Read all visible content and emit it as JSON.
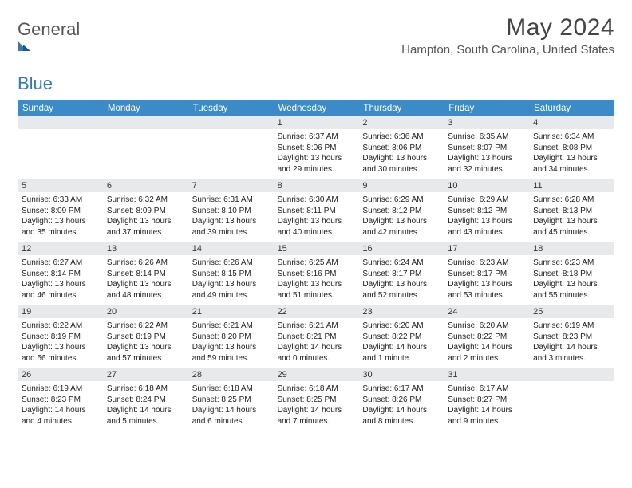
{
  "brand": {
    "name_a": "General",
    "name_b": "Blue"
  },
  "title": "May 2024",
  "location": "Hampton, South Carolina, United States",
  "colors": {
    "header_bg": "#3b8bc8",
    "header_text": "#ffffff",
    "daynum_bg": "#e8e9ea",
    "row_border": "#3a6a95",
    "title_color": "#444",
    "logo_blue": "#2f7bbf"
  },
  "weekdays": [
    "Sunday",
    "Monday",
    "Tuesday",
    "Wednesday",
    "Thursday",
    "Friday",
    "Saturday"
  ],
  "weeks": [
    [
      {
        "blank": true
      },
      {
        "blank": true
      },
      {
        "blank": true
      },
      {
        "day": "1",
        "sunrise": "Sunrise: 6:37 AM",
        "sunset": "Sunset: 8:06 PM",
        "daylight": "Daylight: 13 hours and 29 minutes."
      },
      {
        "day": "2",
        "sunrise": "Sunrise: 6:36 AM",
        "sunset": "Sunset: 8:06 PM",
        "daylight": "Daylight: 13 hours and 30 minutes."
      },
      {
        "day": "3",
        "sunrise": "Sunrise: 6:35 AM",
        "sunset": "Sunset: 8:07 PM",
        "daylight": "Daylight: 13 hours and 32 minutes."
      },
      {
        "day": "4",
        "sunrise": "Sunrise: 6:34 AM",
        "sunset": "Sunset: 8:08 PM",
        "daylight": "Daylight: 13 hours and 34 minutes."
      }
    ],
    [
      {
        "day": "5",
        "sunrise": "Sunrise: 6:33 AM",
        "sunset": "Sunset: 8:09 PM",
        "daylight": "Daylight: 13 hours and 35 minutes."
      },
      {
        "day": "6",
        "sunrise": "Sunrise: 6:32 AM",
        "sunset": "Sunset: 8:09 PM",
        "daylight": "Daylight: 13 hours and 37 minutes."
      },
      {
        "day": "7",
        "sunrise": "Sunrise: 6:31 AM",
        "sunset": "Sunset: 8:10 PM",
        "daylight": "Daylight: 13 hours and 39 minutes."
      },
      {
        "day": "8",
        "sunrise": "Sunrise: 6:30 AM",
        "sunset": "Sunset: 8:11 PM",
        "daylight": "Daylight: 13 hours and 40 minutes."
      },
      {
        "day": "9",
        "sunrise": "Sunrise: 6:29 AM",
        "sunset": "Sunset: 8:12 PM",
        "daylight": "Daylight: 13 hours and 42 minutes."
      },
      {
        "day": "10",
        "sunrise": "Sunrise: 6:29 AM",
        "sunset": "Sunset: 8:12 PM",
        "daylight": "Daylight: 13 hours and 43 minutes."
      },
      {
        "day": "11",
        "sunrise": "Sunrise: 6:28 AM",
        "sunset": "Sunset: 8:13 PM",
        "daylight": "Daylight: 13 hours and 45 minutes."
      }
    ],
    [
      {
        "day": "12",
        "sunrise": "Sunrise: 6:27 AM",
        "sunset": "Sunset: 8:14 PM",
        "daylight": "Daylight: 13 hours and 46 minutes."
      },
      {
        "day": "13",
        "sunrise": "Sunrise: 6:26 AM",
        "sunset": "Sunset: 8:14 PM",
        "daylight": "Daylight: 13 hours and 48 minutes."
      },
      {
        "day": "14",
        "sunrise": "Sunrise: 6:26 AM",
        "sunset": "Sunset: 8:15 PM",
        "daylight": "Daylight: 13 hours and 49 minutes."
      },
      {
        "day": "15",
        "sunrise": "Sunrise: 6:25 AM",
        "sunset": "Sunset: 8:16 PM",
        "daylight": "Daylight: 13 hours and 51 minutes."
      },
      {
        "day": "16",
        "sunrise": "Sunrise: 6:24 AM",
        "sunset": "Sunset: 8:17 PM",
        "daylight": "Daylight: 13 hours and 52 minutes."
      },
      {
        "day": "17",
        "sunrise": "Sunrise: 6:23 AM",
        "sunset": "Sunset: 8:17 PM",
        "daylight": "Daylight: 13 hours and 53 minutes."
      },
      {
        "day": "18",
        "sunrise": "Sunrise: 6:23 AM",
        "sunset": "Sunset: 8:18 PM",
        "daylight": "Daylight: 13 hours and 55 minutes."
      }
    ],
    [
      {
        "day": "19",
        "sunrise": "Sunrise: 6:22 AM",
        "sunset": "Sunset: 8:19 PM",
        "daylight": "Daylight: 13 hours and 56 minutes."
      },
      {
        "day": "20",
        "sunrise": "Sunrise: 6:22 AM",
        "sunset": "Sunset: 8:19 PM",
        "daylight": "Daylight: 13 hours and 57 minutes."
      },
      {
        "day": "21",
        "sunrise": "Sunrise: 6:21 AM",
        "sunset": "Sunset: 8:20 PM",
        "daylight": "Daylight: 13 hours and 59 minutes."
      },
      {
        "day": "22",
        "sunrise": "Sunrise: 6:21 AM",
        "sunset": "Sunset: 8:21 PM",
        "daylight": "Daylight: 14 hours and 0 minutes."
      },
      {
        "day": "23",
        "sunrise": "Sunrise: 6:20 AM",
        "sunset": "Sunset: 8:22 PM",
        "daylight": "Daylight: 14 hours and 1 minute."
      },
      {
        "day": "24",
        "sunrise": "Sunrise: 6:20 AM",
        "sunset": "Sunset: 8:22 PM",
        "daylight": "Daylight: 14 hours and 2 minutes."
      },
      {
        "day": "25",
        "sunrise": "Sunrise: 6:19 AM",
        "sunset": "Sunset: 8:23 PM",
        "daylight": "Daylight: 14 hours and 3 minutes."
      }
    ],
    [
      {
        "day": "26",
        "sunrise": "Sunrise: 6:19 AM",
        "sunset": "Sunset: 8:23 PM",
        "daylight": "Daylight: 14 hours and 4 minutes."
      },
      {
        "day": "27",
        "sunrise": "Sunrise: 6:18 AM",
        "sunset": "Sunset: 8:24 PM",
        "daylight": "Daylight: 14 hours and 5 minutes."
      },
      {
        "day": "28",
        "sunrise": "Sunrise: 6:18 AM",
        "sunset": "Sunset: 8:25 PM",
        "daylight": "Daylight: 14 hours and 6 minutes."
      },
      {
        "day": "29",
        "sunrise": "Sunrise: 6:18 AM",
        "sunset": "Sunset: 8:25 PM",
        "daylight": "Daylight: 14 hours and 7 minutes."
      },
      {
        "day": "30",
        "sunrise": "Sunrise: 6:17 AM",
        "sunset": "Sunset: 8:26 PM",
        "daylight": "Daylight: 14 hours and 8 minutes."
      },
      {
        "day": "31",
        "sunrise": "Sunrise: 6:17 AM",
        "sunset": "Sunset: 8:27 PM",
        "daylight": "Daylight: 14 hours and 9 minutes."
      },
      {
        "blank": true
      }
    ]
  ]
}
